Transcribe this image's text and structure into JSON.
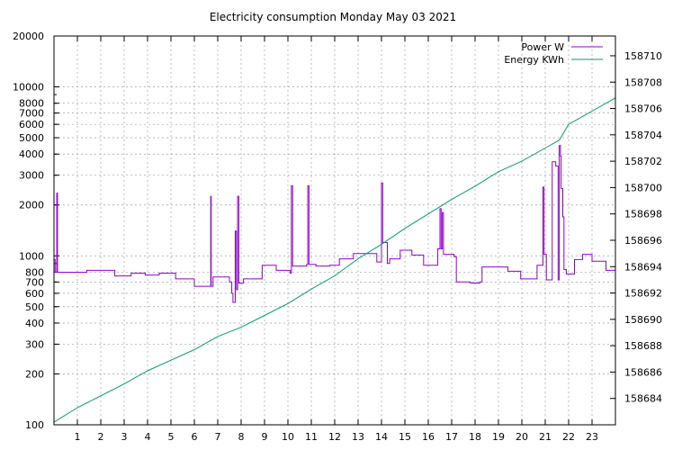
{
  "chart_data": {
    "type": "line",
    "title": "Electricity consumption Monday May 03 2021",
    "x_ticks": [
      1,
      2,
      3,
      4,
      5,
      6,
      7,
      8,
      9,
      10,
      11,
      12,
      13,
      14,
      15,
      16,
      17,
      18,
      19,
      20,
      21,
      22,
      23
    ],
    "xlim": [
      0,
      24
    ],
    "y_left": {
      "scale": "log",
      "lim": [
        100,
        20000
      ],
      "ticks": [
        100,
        200,
        300,
        400,
        500,
        600,
        700,
        800,
        1000,
        2000,
        3000,
        4000,
        5000,
        6000,
        7000,
        8000,
        10000,
        20000
      ]
    },
    "y_right": {
      "lim": [
        158682,
        158711.5
      ],
      "ticks": [
        158684,
        158686,
        158688,
        158690,
        158692,
        158694,
        158696,
        158698,
        158700,
        158702,
        158704,
        158706,
        158708,
        158710
      ]
    },
    "grid": true,
    "legend_position": "top-right",
    "series": [
      {
        "name": "Power W",
        "axis": "left",
        "color": "#9400d3",
        "step": true,
        "points": [
          [
            0,
            950
          ],
          [
            0.05,
            800
          ],
          [
            0.12,
            2350
          ],
          [
            0.15,
            800
          ],
          [
            1.4,
            820
          ],
          [
            2.6,
            760
          ],
          [
            3.3,
            790
          ],
          [
            3.9,
            770
          ],
          [
            4.5,
            790
          ],
          [
            5.2,
            730
          ],
          [
            6.0,
            660
          ],
          [
            6.7,
            2250
          ],
          [
            6.72,
            660
          ],
          [
            6.8,
            750
          ],
          [
            7.5,
            700
          ],
          [
            7.6,
            600
          ],
          [
            7.65,
            530
          ],
          [
            7.75,
            1400
          ],
          [
            7.8,
            630
          ],
          [
            7.85,
            2250
          ],
          [
            7.9,
            690
          ],
          [
            8.1,
            730
          ],
          [
            8.9,
            880
          ],
          [
            9.5,
            820
          ],
          [
            10.1,
            790
          ],
          [
            10.15,
            2600
          ],
          [
            10.2,
            870
          ],
          [
            10.8,
            890
          ],
          [
            10.85,
            2600
          ],
          [
            10.9,
            890
          ],
          [
            11.2,
            870
          ],
          [
            11.8,
            880
          ],
          [
            12.2,
            960
          ],
          [
            12.8,
            1030
          ],
          [
            13.8,
            920
          ],
          [
            14.0,
            2700
          ],
          [
            14.05,
            1200
          ],
          [
            14.25,
            900
          ],
          [
            14.35,
            960
          ],
          [
            14.8,
            1080
          ],
          [
            15.3,
            1010
          ],
          [
            15.8,
            880
          ],
          [
            16.4,
            1100
          ],
          [
            16.5,
            1900
          ],
          [
            16.55,
            1100
          ],
          [
            16.6,
            1800
          ],
          [
            16.65,
            1020
          ],
          [
            17.1,
            990
          ],
          [
            17.2,
            700
          ],
          [
            17.8,
            690
          ],
          [
            18.2,
            700
          ],
          [
            18.3,
            860
          ],
          [
            19.0,
            860
          ],
          [
            19.4,
            810
          ],
          [
            19.95,
            730
          ],
          [
            20.65,
            880
          ],
          [
            20.9,
            2550
          ],
          [
            20.95,
            1020
          ],
          [
            21.05,
            720
          ],
          [
            21.3,
            3600
          ],
          [
            21.45,
            3400
          ],
          [
            21.55,
            720
          ],
          [
            21.6,
            4500
          ],
          [
            21.65,
            3900
          ],
          [
            21.68,
            2500
          ],
          [
            21.75,
            1700
          ],
          [
            21.8,
            830
          ],
          [
            21.9,
            780
          ],
          [
            22.25,
            950
          ],
          [
            22.6,
            1020
          ],
          [
            23.0,
            930
          ],
          [
            23.6,
            820
          ],
          [
            24,
            820
          ]
        ]
      },
      {
        "name": "Energy KWh",
        "axis": "right",
        "color": "#009e73",
        "step": false,
        "points": [
          [
            0,
            158682.2
          ],
          [
            1,
            158683.3
          ],
          [
            2,
            158684.2
          ],
          [
            3,
            158685.1
          ],
          [
            4,
            158686.1
          ],
          [
            5,
            158686.9
          ],
          [
            6,
            158687.7
          ],
          [
            7,
            158688.7
          ],
          [
            8,
            158689.4
          ],
          [
            9,
            158690.3
          ],
          [
            10,
            158691.2
          ],
          [
            11,
            158692.3
          ],
          [
            12,
            158693.3
          ],
          [
            13,
            158694.6
          ],
          [
            14,
            158695.7
          ],
          [
            15,
            158696.9
          ],
          [
            16,
            158698.0
          ],
          [
            17,
            158699.1
          ],
          [
            18,
            158700.1
          ],
          [
            19,
            158701.2
          ],
          [
            20,
            158702.0
          ],
          [
            21,
            158703.0
          ],
          [
            21.6,
            158703.6
          ],
          [
            22,
            158704.8
          ],
          [
            23,
            158705.8
          ],
          [
            24,
            158706.8
          ]
        ]
      }
    ]
  }
}
